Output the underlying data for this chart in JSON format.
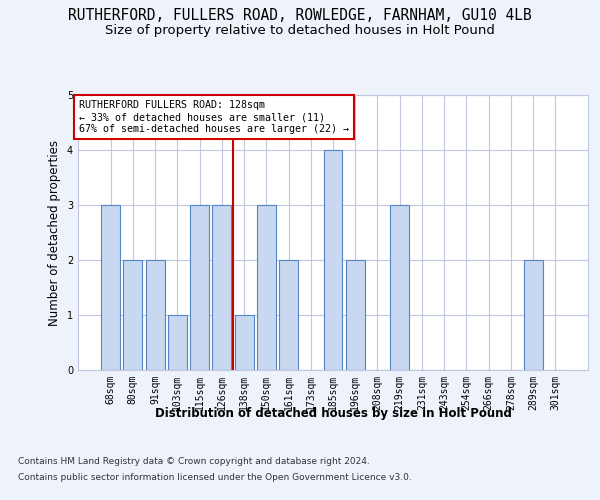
{
  "title": "RUTHERFORD, FULLERS ROAD, ROWLEDGE, FARNHAM, GU10 4LB",
  "subtitle": "Size of property relative to detached houses in Holt Pound",
  "xlabel": "Distribution of detached houses by size in Holt Pound",
  "ylabel": "Number of detached properties",
  "footer_line1": "Contains HM Land Registry data © Crown copyright and database right 2024.",
  "footer_line2": "Contains public sector information licensed under the Open Government Licence v3.0.",
  "categories": [
    "68sqm",
    "80sqm",
    "91sqm",
    "103sqm",
    "115sqm",
    "126sqm",
    "138sqm",
    "150sqm",
    "161sqm",
    "173sqm",
    "185sqm",
    "196sqm",
    "208sqm",
    "219sqm",
    "231sqm",
    "243sqm",
    "254sqm",
    "266sqm",
    "278sqm",
    "289sqm",
    "301sqm"
  ],
  "values": [
    3,
    2,
    2,
    1,
    3,
    3,
    1,
    3,
    2,
    0,
    4,
    2,
    0,
    3,
    0,
    0,
    0,
    0,
    0,
    2,
    0
  ],
  "bar_color": "#c8d8f0",
  "bar_edge_color": "#5585c5",
  "highlight_index": 5,
  "highlight_line_color": "#cc0000",
  "annotation_text": "RUTHERFORD FULLERS ROAD: 128sqm\n← 33% of detached houses are smaller (11)\n67% of semi-detached houses are larger (22) →",
  "annotation_box_color": "#ffffff",
  "annotation_box_edge": "#cc0000",
  "ylim": [
    0,
    5
  ],
  "yticks": [
    0,
    1,
    2,
    3,
    4,
    5
  ],
  "background_color": "#eef2fa",
  "plot_bg_color": "#ffffff",
  "grid_color": "#c0c8e0",
  "title_fontsize": 10.5,
  "subtitle_fontsize": 9.5,
  "axis_label_fontsize": 8.5,
  "tick_fontsize": 7,
  "footer_fontsize": 6.5
}
